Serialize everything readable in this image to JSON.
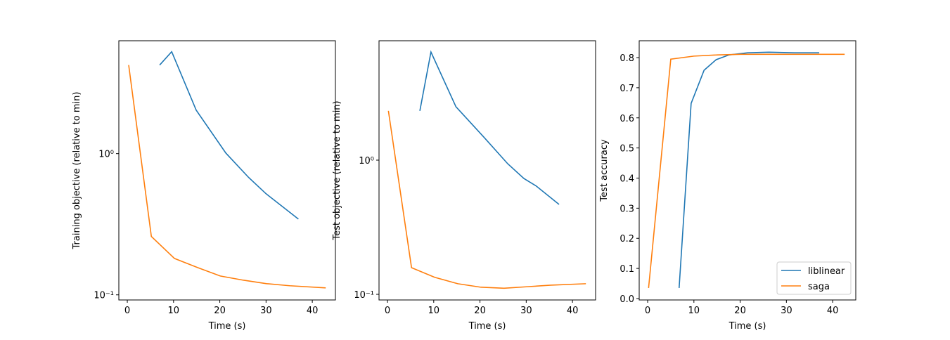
{
  "chart_data": [
    {
      "type": "line",
      "xlabel": "Time (s)",
      "ylabel": "Training objective (relative to min)",
      "yscale": "log",
      "xlim": [
        -1.83,
        45.0
      ],
      "ylim": [
        0.092,
        6.3
      ],
      "xticks": [
        0,
        10,
        20,
        30,
        40
      ],
      "yticks": [
        {
          "value": 0.1,
          "label": "10⁻¹"
        },
        {
          "value": 1,
          "label": "10⁰"
        }
      ],
      "series": [
        {
          "color": "#1f77b4",
          "x": [
            7.0,
            9.6,
            14.9,
            21.3,
            26.2,
            30.0,
            37.0
          ],
          "values": [
            4.24,
            5.27,
            2.03,
            1.01,
            0.68,
            0.52,
            0.344
          ]
        },
        {
          "color": "#ff7f0e",
          "x": [
            0.3,
            5.2,
            10.2,
            15.2,
            20.1,
            25.1,
            30.1,
            35.1,
            42.9
          ],
          "values": [
            4.24,
            0.259,
            0.181,
            0.156,
            0.136,
            0.127,
            0.12,
            0.116,
            0.112
          ]
        }
      ]
    },
    {
      "type": "line",
      "xlabel": "Time (s)",
      "ylabel": "Test objective (relative to min)",
      "yscale": "log",
      "xlim": [
        -1.83,
        45.0
      ],
      "ylim": [
        0.0908,
        7.76
      ],
      "xticks": [
        0,
        10,
        20,
        30,
        40
      ],
      "yticks": [
        {
          "value": 0.1,
          "label": "10⁻¹"
        },
        {
          "value": 1,
          "label": "10⁰"
        }
      ],
      "series": [
        {
          "color": "#1f77b4",
          "x": [
            7.0,
            9.4,
            14.8,
            20.8,
            26.0,
            29.5,
            32.2,
            37.1
          ],
          "values": [
            2.33,
            6.4,
            2.5,
            1.49,
            0.94,
            0.73,
            0.64,
            0.468
          ]
        },
        {
          "color": "#ff7f0e",
          "x": [
            0.2,
            5.2,
            10.2,
            15.2,
            20.2,
            25.2,
            30.3,
            35.3,
            42.9
          ],
          "values": [
            2.33,
            0.158,
            0.134,
            0.12,
            0.113,
            0.111,
            0.114,
            0.117,
            0.12
          ]
        }
      ]
    },
    {
      "type": "line",
      "xlabel": "Time (s)",
      "ylabel": "Test accuracy",
      "yscale": "linear",
      "xlim": [
        -1.83,
        45.0
      ],
      "ylim": [
        -0.0047,
        0.856
      ],
      "xticks": [
        0,
        10,
        20,
        30,
        40
      ],
      "yticks": [
        {
          "value": 0,
          "label": "0.0"
        },
        0.1,
        0.2,
        0.3,
        0.4,
        0.5,
        0.6,
        0.7,
        0.8
      ],
      "legend": "lower right",
      "series": [
        {
          "name": "liblinear",
          "color": "#1f77b4",
          "x": [
            6.8,
            9.4,
            12.2,
            14.8,
            17.6,
            21.6,
            26.2,
            31.8,
            37.1
          ],
          "values": [
            0.035,
            0.648,
            0.758,
            0.793,
            0.809,
            0.816,
            0.818,
            0.816,
            0.816
          ]
        },
        {
          "name": "saga",
          "color": "#ff7f0e",
          "x": [
            0.2,
            5.0,
            10.0,
            15.1,
            20.1,
            42.6
          ],
          "values": [
            0.035,
            0.795,
            0.805,
            0.809,
            0.811,
            0.811
          ]
        }
      ]
    }
  ]
}
